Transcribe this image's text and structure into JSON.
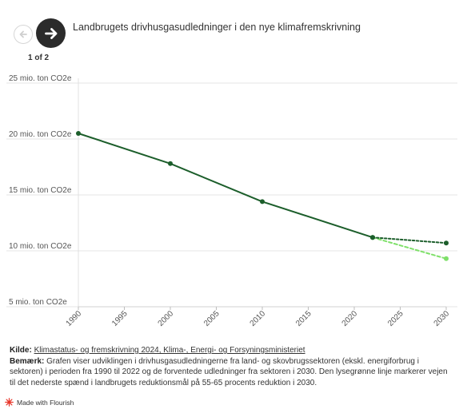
{
  "story": {
    "title": "Landbrugets drivhusgasudledninger i den nye klimafremskrivning",
    "page_indicator": "1 of 2",
    "prev_icon": "arrow-left-icon",
    "next_icon": "arrow-right-icon"
  },
  "chart_data": {
    "type": "line",
    "title": "",
    "xlabel": "",
    "ylabel": "",
    "x_ticks": [
      "1990",
      "1995",
      "2000",
      "2005",
      "2010",
      "2015",
      "2020",
      "2025",
      "2030"
    ],
    "y_ticks": [
      {
        "value": 5,
        "label": "5 mio. ton CO2e"
      },
      {
        "value": 10,
        "label": "10 mio. ton CO2e"
      },
      {
        "value": 15,
        "label": "15 mio. ton CO2e"
      },
      {
        "value": 20,
        "label": "20 mio. ton CO2e"
      },
      {
        "value": 25,
        "label": "25 mio. ton CO2e"
      }
    ],
    "xlim": [
      1990,
      2030
    ],
    "ylim": [
      5,
      25
    ],
    "grid": "horizontal",
    "series": [
      {
        "x": [
          1990,
          2000,
          2010,
          2022
        ],
        "y": [
          20.5,
          17.8,
          14.4,
          11.2
        ],
        "color": "#1c5e2b",
        "dash": "solid",
        "markers": true
      },
      {
        "x": [
          2022,
          2030
        ],
        "y": [
          11.2,
          10.7
        ],
        "color": "#1c5e2b",
        "dash": "dotted",
        "markers": true
      },
      {
        "x": [
          2022,
          2030
        ],
        "y": [
          11.2,
          9.3
        ],
        "color": "#7fe06a",
        "dash": "dashed",
        "markers": true
      }
    ]
  },
  "notes": {
    "source_label": "Kilde:",
    "source_text": "Klimastatus- og fremskrivning 2024, Klima-, Energi- og Forsyningsministeriet",
    "remark_label": "Bemærk:",
    "remark_text": "Grafen viser udviklingen i drivhusgasudledningerne fra land- og skovbrugssektoren (ekskl. energiforbrug i sektoren) i perioden fra 1990 til 2022 og de forventede udledninger fra sektoren i 2030. Den lysegrønne linje markerer vejen til det nederste spænd i landbrugets reduktionsmål på 55-65 procents reduktion i 2030."
  },
  "footer": {
    "credit": "Made with Flourish",
    "icon": "flourish-logo-icon"
  },
  "colors": {
    "main_line": "#1c5e2b",
    "target_line": "#7fe06a",
    "grid": "#e6e6e6",
    "nav_dark": "#2b2b2b"
  }
}
